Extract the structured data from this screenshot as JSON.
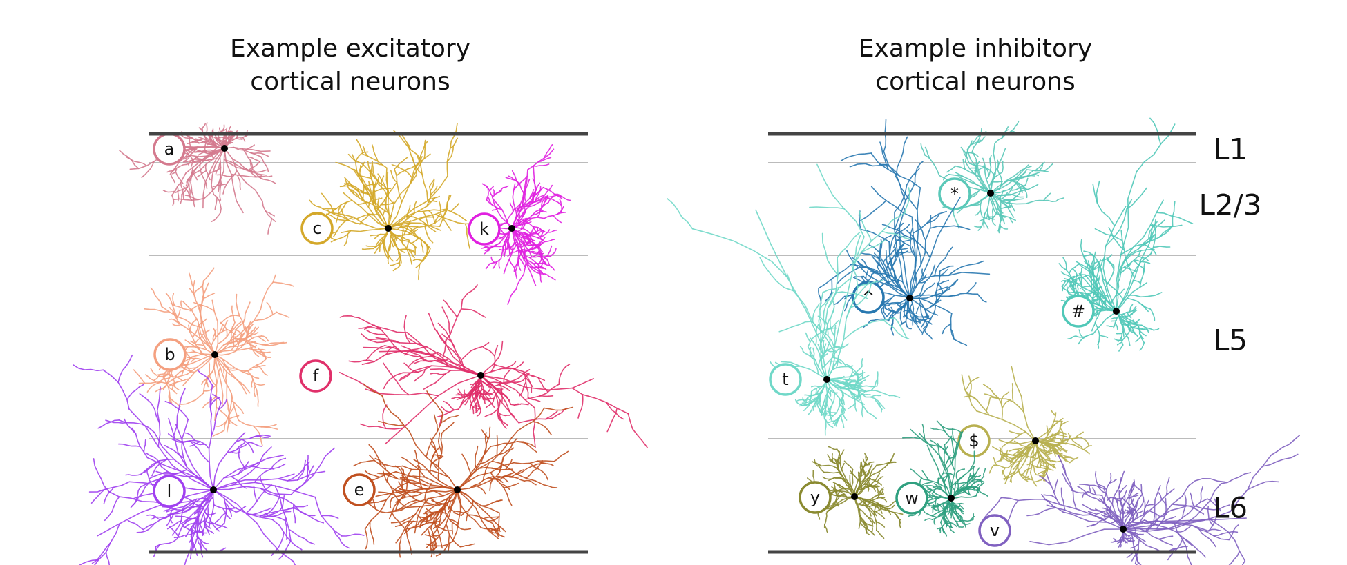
{
  "panels": [
    {
      "title_lines": [
        "Example excitatory",
        "cortical neurons"
      ],
      "neurons": [
        {
          "label": "a",
          "color": "#d47a8e"
        },
        {
          "label": "c",
          "color": "#d4a82a"
        },
        {
          "label": "k",
          "color": "#e020e0"
        },
        {
          "label": "b",
          "color": "#f4a080"
        },
        {
          "label": "f",
          "color": "#e0306a"
        },
        {
          "label": "l",
          "color": "#a040f0"
        },
        {
          "label": "e",
          "color": "#c05020"
        }
      ]
    },
    {
      "title_lines": [
        "Example inhibitory",
        "cortical neurons"
      ],
      "neurons": [
        {
          "label": "*",
          "color": "#5ac8b8"
        },
        {
          "label": "^",
          "color": "#2878b0"
        },
        {
          "label": "#",
          "color": "#50c8b8"
        },
        {
          "label": "t",
          "color": "#70d8c8"
        },
        {
          "label": "$",
          "color": "#b8b050"
        },
        {
          "label": "y",
          "color": "#8a8a30"
        },
        {
          "label": "w",
          "color": "#30a080"
        },
        {
          "label": "v",
          "color": "#8060c0"
        }
      ]
    }
  ],
  "layers": [
    "L1",
    "L2/3",
    "L5",
    "L6"
  ]
}
